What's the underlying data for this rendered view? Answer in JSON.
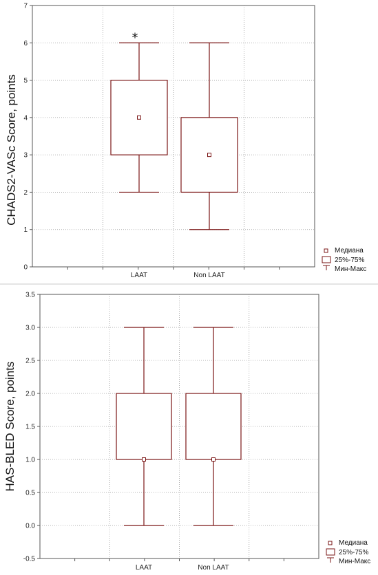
{
  "colors": {
    "box": "#7a1414",
    "grid": "#9a9a9a",
    "axis": "#555555"
  },
  "legend": {
    "median_label": "Медиана",
    "iqr_label": "25%-75%",
    "range_label": "Мин-Макс"
  },
  "chart_data": [
    {
      "type": "boxplot",
      "title": "",
      "ylabel": "CHADS2-VASc Score, points",
      "ylim": [
        0,
        7
      ],
      "yticks": [
        0,
        1,
        2,
        3,
        4,
        5,
        6,
        7
      ],
      "ytick_labels": [
        "0",
        "1",
        "2",
        "3",
        "4",
        "5",
        "6",
        "7"
      ],
      "grid": true,
      "categories": [
        "LAAT",
        "Non LAAT"
      ],
      "boxes": [
        {
          "category": "LAAT",
          "min": 2,
          "q1": 3,
          "median": 4,
          "q3": 5,
          "max": 6
        },
        {
          "category": "Non LAAT",
          "min": 1,
          "q1": 2,
          "median": 3,
          "q3": 4,
          "max": 6
        }
      ],
      "annotations": [
        {
          "text": "*",
          "category": "LAAT",
          "y": 6.2
        }
      ],
      "legend_position": "bottom-right, outside plot"
    },
    {
      "type": "boxplot",
      "title": "",
      "ylabel": "HAS-BLED Score, points",
      "ylim": [
        -0.5,
        3.5
      ],
      "yticks": [
        -0.5,
        0,
        0.5,
        1,
        1.5,
        2,
        2.5,
        3,
        3.5
      ],
      "ytick_labels": [
        "-0.5",
        "0.0",
        "0.5",
        "1.0",
        "1.5",
        "2.0",
        "2.5",
        "3.0",
        "3.5"
      ],
      "grid": true,
      "categories": [
        "LAAT",
        "Non LAAT"
      ],
      "boxes": [
        {
          "category": "LAAT",
          "min": 0,
          "q1": 1,
          "median": 1,
          "q3": 2,
          "max": 3
        },
        {
          "category": "Non LAAT",
          "min": 0,
          "q1": 1,
          "median": 1,
          "q3": 2,
          "max": 3
        }
      ],
      "annotations": [],
      "legend_position": "bottom-right, outside plot"
    }
  ]
}
